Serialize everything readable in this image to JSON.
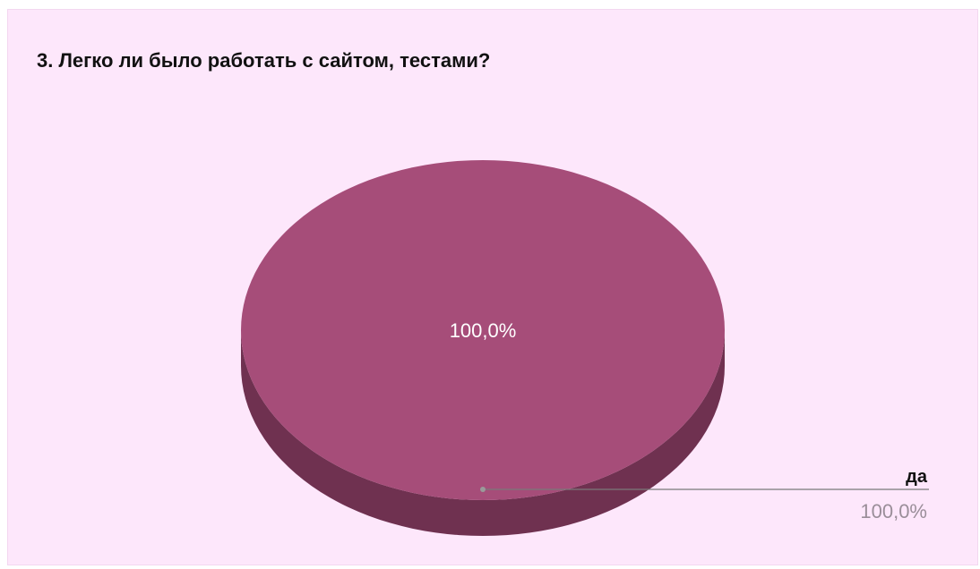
{
  "chart_data": {
    "type": "pie",
    "title": "3. Легко ли было работать с сайтом, тестами?",
    "three_d": true,
    "slices": [
      {
        "name": "да",
        "value": 100.0,
        "label": "100,0%",
        "color": "#a64d79",
        "side_color": "#6f3150"
      }
    ]
  }
}
